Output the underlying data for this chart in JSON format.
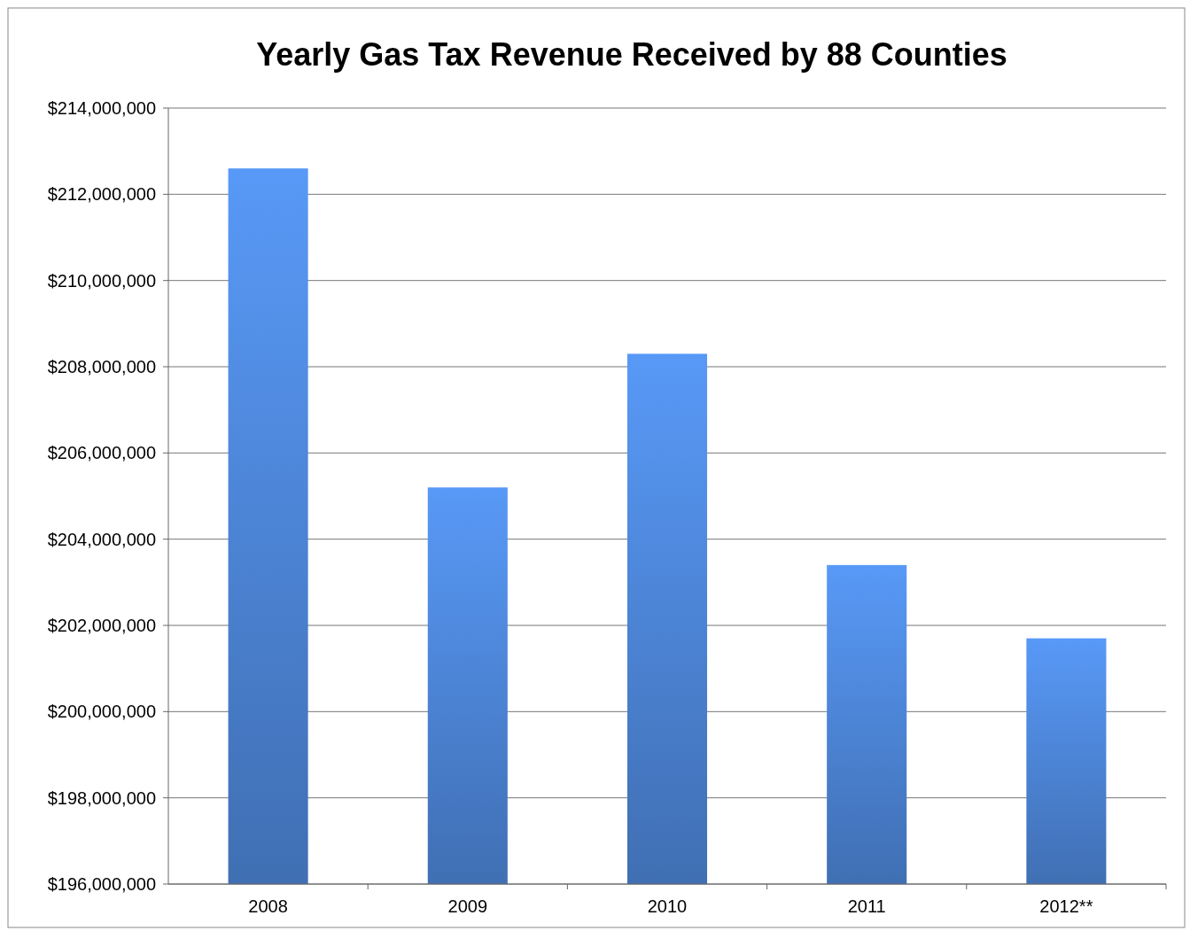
{
  "chart_data": {
    "type": "bar",
    "title": "Yearly Gas Tax Revenue Received by 88 Counties",
    "categories": [
      "2008",
      "2009",
      "2010",
      "2011",
      "2012**"
    ],
    "values": [
      212600000,
      205200000,
      208300000,
      203400000,
      201700000
    ],
    "color": "#4a80cf",
    "ylim": [
      196000000,
      214000000
    ],
    "yticks": [
      {
        "value": 196000000,
        "label": "$196,000,000"
      },
      {
        "value": 198000000,
        "label": "$198,000,000"
      },
      {
        "value": 200000000,
        "label": "$200,000,000"
      },
      {
        "value": 202000000,
        "label": "$202,000,000"
      },
      {
        "value": 204000000,
        "label": "$204,000,000"
      },
      {
        "value": 206000000,
        "label": "$206,000,000"
      },
      {
        "value": 208000000,
        "label": "$208,000,000"
      },
      {
        "value": 210000000,
        "label": "$210,000,000"
      },
      {
        "value": 212000000,
        "label": "$212,000,000"
      },
      {
        "value": 214000000,
        "label": "$214,000,000"
      }
    ],
    "grid": "y"
  }
}
